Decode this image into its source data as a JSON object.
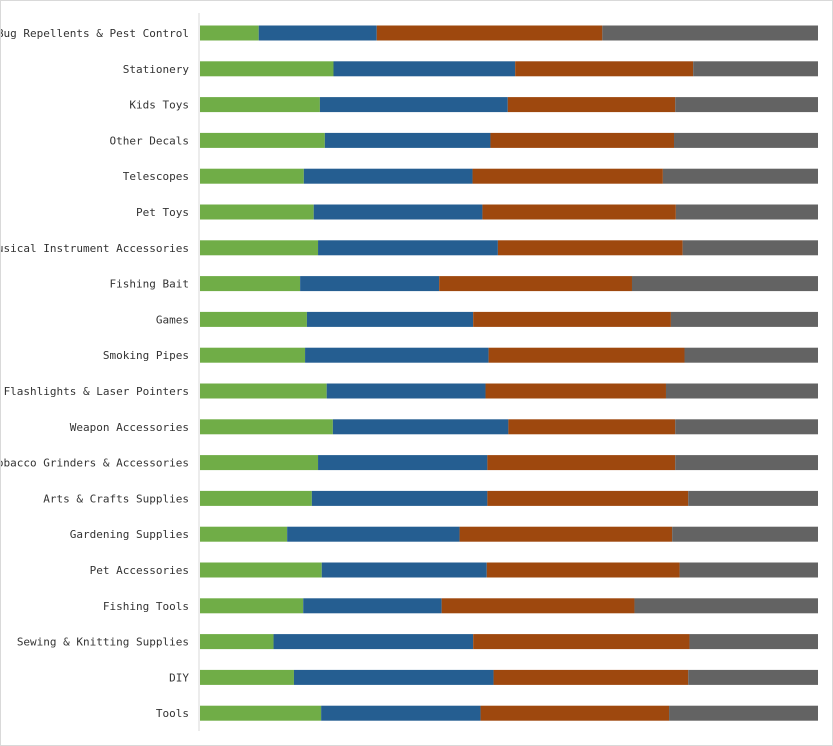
{
  "chart_data": {
    "type": "bar",
    "orientation": "horizontal",
    "stacked": "percent",
    "title": "",
    "xlabel": "",
    "ylabel": "",
    "xlim": [
      0,
      100
    ],
    "grid": false,
    "legend": "none",
    "categories": [
      "Bug Repellents & Pest Control",
      "Stationery",
      "Kids Toys",
      "Other Decals",
      "Telescopes",
      "Pet Toys",
      "Musical Instrument Accessories",
      "Fishing Bait",
      "Games",
      "Smoking Pipes",
      "Flashlights & Laser Pointers",
      "Weapon Accessories",
      "Tobacco Grinders & Accessories",
      "Arts & Crafts Supplies",
      "Gardening Supplies",
      "Pet Accessories",
      "Fishing Tools",
      "Sewing & Knitting Supplies",
      "DIY",
      "Tools"
    ],
    "series": [
      {
        "color": "#70ad47",
        "values": [
          9.5,
          21.6,
          19.4,
          20.2,
          16.8,
          18.4,
          19.1,
          16.2,
          17.3,
          17.0,
          20.5,
          21.5,
          19.1,
          18.1,
          14.1,
          19.7,
          16.7,
          11.9,
          15.2,
          19.6
        ]
      },
      {
        "color": "#255e91",
        "values": [
          19.1,
          29.4,
          30.4,
          26.8,
          27.3,
          27.3,
          29.1,
          22.5,
          26.9,
          29.7,
          25.7,
          28.4,
          27.4,
          28.4,
          27.9,
          26.7,
          22.4,
          32.3,
          32.3,
          25.8
        ]
      },
      {
        "color": "#9e480e",
        "values": [
          36.5,
          28.8,
          27.1,
          29.7,
          30.8,
          31.3,
          29.9,
          31.2,
          32.0,
          31.7,
          29.2,
          27.0,
          30.4,
          32.5,
          34.4,
          31.2,
          31.2,
          35.0,
          31.5,
          30.5
        ]
      },
      {
        "color": "#636363",
        "values": [
          34.9,
          20.2,
          23.1,
          23.3,
          25.1,
          23.0,
          21.9,
          30.1,
          23.8,
          21.6,
          24.6,
          23.1,
          23.1,
          21.0,
          23.6,
          22.4,
          29.7,
          20.8,
          21.0,
          24.1
        ]
      }
    ]
  }
}
